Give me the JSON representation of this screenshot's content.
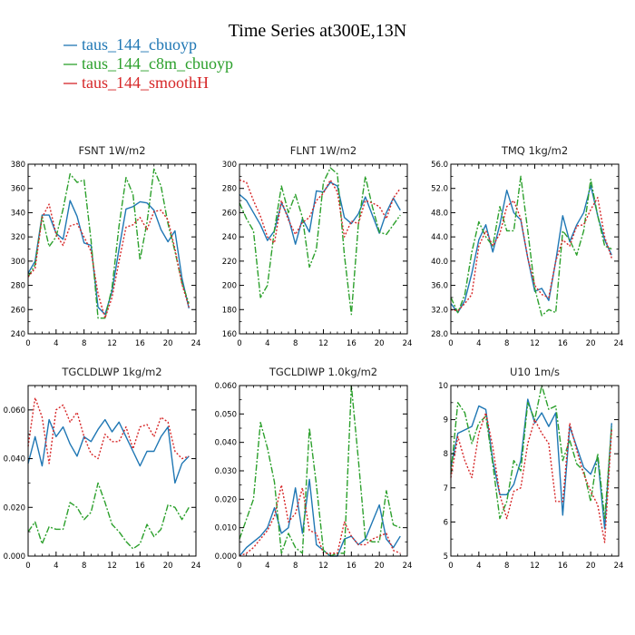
{
  "title": "Time Series at300E,13N",
  "legend": [
    {
      "label": "taus_144_cbuoyp",
      "color": "#1f77b4",
      "dash": "solid"
    },
    {
      "label": "taus_144_c8m_cbuoyp",
      "color": "#2ca02c",
      "dash": "dashdot"
    },
    {
      "label": "taus_144_smoothH",
      "color": "#d62728",
      "dash": "dotted"
    }
  ],
  "chart_data": [
    {
      "type": "line",
      "title": "FSNT   1W/m2",
      "xlim": [
        0,
        24
      ],
      "ylim": [
        240,
        380
      ],
      "xticks": [
        0,
        4,
        8,
        12,
        16,
        20,
        24
      ],
      "yticks": [
        240,
        260,
        280,
        300,
        320,
        340,
        360,
        380
      ],
      "ytick_labels": [
        "240",
        "260",
        "280",
        "300",
        "320",
        "340",
        "360",
        "380"
      ],
      "x": [
        0,
        1,
        2,
        3,
        4,
        5,
        6,
        7,
        8,
        9,
        10,
        11,
        12,
        13,
        14,
        15,
        16,
        17,
        18,
        19,
        20,
        21,
        22,
        23
      ],
      "series": [
        {
          "name": "taus_144_cbuoyp",
          "values": [
            290,
            300,
            338,
            338,
            323,
            318,
            350,
            337,
            315,
            313,
            262,
            256,
            275,
            310,
            343,
            345,
            349,
            348,
            342,
            326,
            316,
            325,
            286,
            261
          ]
        },
        {
          "name": "taus_144_c8m_cbuoyp",
          "values": [
            287,
            297,
            337,
            312,
            320,
            343,
            372,
            365,
            367,
            317,
            253,
            253,
            278,
            329,
            369,
            355,
            301,
            332,
            376,
            362,
            331,
            308,
            282,
            265
          ]
        },
        {
          "name": "taus_144_smoothH",
          "values": [
            287,
            294,
            336,
            347,
            322,
            313,
            329,
            331,
            320,
            308,
            273,
            253,
            270,
            300,
            328,
            330,
            336,
            326,
            341,
            342,
            334,
            310,
            281,
            262
          ]
        }
      ]
    },
    {
      "type": "line",
      "title": "FLNT   1W/m2",
      "xlim": [
        0,
        24
      ],
      "ylim": [
        160,
        300
      ],
      "xticks": [
        0,
        4,
        8,
        12,
        16,
        20,
        24
      ],
      "yticks": [
        160,
        180,
        200,
        220,
        240,
        260,
        280,
        300
      ],
      "ytick_labels": [
        "160",
        "180",
        "200",
        "220",
        "240",
        "260",
        "280",
        "300"
      ],
      "x": [
        0,
        1,
        2,
        3,
        4,
        5,
        6,
        7,
        8,
        9,
        10,
        11,
        12,
        13,
        14,
        15,
        16,
        17,
        18,
        19,
        20,
        21,
        22,
        23
      ],
      "series": [
        {
          "name": "taus_144_cbuoyp",
          "values": [
            275,
            270,
            260,
            250,
            237,
            245,
            268,
            256,
            234,
            255,
            244,
            278,
            277,
            285,
            282,
            256,
            251,
            259,
            273,
            258,
            243,
            260,
            272,
            262
          ]
        },
        {
          "name": "taus_144_c8m_cbuoyp",
          "values": [
            268,
            255,
            245,
            190,
            200,
            246,
            282,
            260,
            275,
            256,
            215,
            230,
            285,
            297,
            292,
            225,
            176,
            250,
            290,
            265,
            244,
            242,
            250,
            258
          ]
        },
        {
          "name": "taus_144_smoothH",
          "values": [
            287,
            285,
            270,
            257,
            240,
            235,
            270,
            254,
            242,
            252,
            256,
            270,
            276,
            287,
            277,
            240,
            253,
            251,
            270,
            268,
            265,
            255,
            272,
            280
          ]
        }
      ]
    },
    {
      "type": "line",
      "title": "TMQ   1kg/m2",
      "xlim": [
        0,
        24
      ],
      "ylim": [
        28,
        56
      ],
      "xticks": [
        0,
        4,
        8,
        12,
        16,
        20,
        24
      ],
      "yticks": [
        28,
        32,
        36,
        40,
        44,
        48,
        52,
        56
      ],
      "ytick_labels": [
        "28.0",
        "32.0",
        "36.0",
        "40.0",
        "44.0",
        "48.0",
        "52.0",
        "56.0"
      ],
      "x": [
        0,
        1,
        2,
        3,
        4,
        5,
        6,
        7,
        8,
        9,
        10,
        11,
        12,
        13,
        14,
        15,
        16,
        17,
        18,
        19,
        20,
        21,
        22,
        23
      ],
      "series": [
        {
          "name": "taus_144_cbuoyp",
          "values": [
            33,
            31.5,
            33.5,
            38,
            43.5,
            46,
            41.5,
            46,
            51.7,
            48,
            46.8,
            40.5,
            35,
            35.5,
            33.5,
            40,
            47.5,
            43.2,
            46,
            48,
            52.5,
            47.5,
            43.5,
            41
          ]
        },
        {
          "name": "taus_144_c8m_cbuoyp",
          "values": [
            34,
            31.5,
            34.5,
            41.5,
            46.5,
            44,
            42.5,
            49,
            45,
            45,
            54,
            45,
            35.5,
            31,
            32,
            31.5,
            45,
            43.5,
            41,
            45,
            53.5,
            47.5,
            42.5,
            42
          ]
        },
        {
          "name": "taus_144_smoothH",
          "values": [
            32,
            31.8,
            33,
            34.5,
            42.5,
            45,
            42.5,
            44.5,
            49,
            50,
            47,
            40.5,
            36,
            34.5,
            34,
            40,
            43.5,
            42.5,
            45.8,
            46,
            48.5,
            50.5,
            44,
            40.5
          ]
        }
      ]
    },
    {
      "type": "line",
      "title": "TGCLDLWP   1kg/m2",
      "xlim": [
        0,
        24
      ],
      "ylim": [
        0,
        0.07
      ],
      "xticks": [
        0,
        4,
        8,
        12,
        16,
        20,
        24
      ],
      "yticks": [
        0,
        0.02,
        0.04,
        0.06
      ],
      "ytick_labels": [
        "0.000",
        "0.020",
        "0.040",
        "0.060"
      ],
      "x": [
        0,
        1,
        2,
        3,
        4,
        5,
        6,
        7,
        8,
        9,
        10,
        11,
        12,
        13,
        14,
        15,
        16,
        17,
        18,
        19,
        20,
        21,
        22,
        23
      ],
      "series": [
        {
          "name": "taus_144_cbuoyp",
          "values": [
            0.038,
            0.049,
            0.037,
            0.056,
            0.049,
            0.053,
            0.046,
            0.041,
            0.049,
            0.047,
            0.052,
            0.056,
            0.051,
            0.055,
            0.049,
            0.043,
            0.037,
            0.043,
            0.043,
            0.049,
            0.053,
            0.03,
            0.038,
            0.041
          ]
        },
        {
          "name": "taus_144_c8m_cbuoyp",
          "values": [
            0.01,
            0.014,
            0.005,
            0.012,
            0.011,
            0.011,
            0.022,
            0.02,
            0.015,
            0.018,
            0.03,
            0.022,
            0.013,
            0.01,
            0.006,
            0.003,
            0.005,
            0.013,
            0.008,
            0.011,
            0.021,
            0.02,
            0.015,
            0.02
          ]
        },
        {
          "name": "taus_144_smoothH",
          "values": [
            0.045,
            0.065,
            0.057,
            0.038,
            0.06,
            0.062,
            0.055,
            0.059,
            0.049,
            0.042,
            0.04,
            0.05,
            0.047,
            0.047,
            0.053,
            0.044,
            0.053,
            0.054,
            0.049,
            0.057,
            0.055,
            0.043,
            0.04,
            0.041
          ]
        }
      ]
    },
    {
      "type": "line",
      "title": "TGCLDIWP   1.0kg/m2",
      "xlim": [
        0,
        24
      ],
      "ylim": [
        0,
        0.06
      ],
      "xticks": [
        0,
        4,
        8,
        12,
        16,
        20,
        24
      ],
      "yticks": [
        0,
        0.01,
        0.02,
        0.03,
        0.04,
        0.05,
        0.06
      ],
      "ytick_labels": [
        "0.000",
        "0.010",
        "0.020",
        "0.030",
        "0.040",
        "0.050",
        "0.060"
      ],
      "x": [
        0,
        1,
        2,
        3,
        4,
        5,
        6,
        7,
        8,
        9,
        10,
        11,
        12,
        13,
        14,
        15,
        16,
        17,
        18,
        19,
        20,
        21,
        22,
        23
      ],
      "series": [
        {
          "name": "taus_144_cbuoyp",
          "values": [
            0.0,
            0.003,
            0.005,
            0.007,
            0.01,
            0.017,
            0.008,
            0.01,
            0.024,
            0.008,
            0.027,
            0.004,
            0.002,
            0.0,
            0.0,
            0.006,
            0.007,
            0.004,
            0.006,
            0.012,
            0.018,
            0.006,
            0.003,
            0.007
          ]
        },
        {
          "name": "taus_144_c8m_cbuoyp",
          "values": [
            0.006,
            0.013,
            0.02,
            0.047,
            0.038,
            0.026,
            0.001,
            0.008,
            0.003,
            0.001,
            0.045,
            0.025,
            0.002,
            0.0,
            0.001,
            0.001,
            0.06,
            0.034,
            0.006,
            0.005,
            0.005,
            0.023,
            0.011,
            0.01
          ]
        },
        {
          "name": "taus_144_smoothH",
          "values": [
            0.0,
            0.001,
            0.003,
            0.006,
            0.009,
            0.014,
            0.025,
            0.012,
            0.015,
            0.024,
            0.009,
            0.008,
            0.001,
            0.001,
            0.001,
            0.012,
            0.007,
            0.004,
            0.004,
            0.006,
            0.007,
            0.008,
            0.002,
            0.001
          ]
        }
      ]
    },
    {
      "type": "line",
      "title": "U10   1m/s",
      "xlim": [
        0,
        24
      ],
      "ylim": [
        5,
        10
      ],
      "xticks": [
        0,
        4,
        8,
        12,
        16,
        20,
        24
      ],
      "yticks": [
        5,
        6,
        7,
        8,
        9,
        10
      ],
      "ytick_labels": [
        "5",
        "6",
        "7",
        "8",
        "9",
        "10"
      ],
      "x": [
        0,
        1,
        2,
        3,
        4,
        5,
        6,
        7,
        8,
        9,
        10,
        11,
        12,
        13,
        14,
        15,
        16,
        17,
        18,
        19,
        20,
        21,
        22,
        23
      ],
      "series": [
        {
          "name": "taus_144_cbuoyp",
          "values": [
            7.6,
            8.6,
            8.7,
            8.8,
            9.4,
            9.3,
            7.8,
            6.8,
            6.8,
            7.1,
            7.8,
            9.6,
            8.9,
            9.2,
            8.8,
            9.2,
            6.2,
            8.8,
            8.2,
            7.6,
            7.4,
            7.9,
            5.8,
            8.9
          ]
        },
        {
          "name": "taus_144_c8m_cbuoyp",
          "values": [
            7.4,
            9.5,
            9.2,
            8.3,
            8.9,
            9.1,
            7.7,
            6.1,
            6.6,
            7.8,
            7.5,
            9.5,
            9.0,
            10.0,
            9.3,
            9.4,
            7.8,
            8.4,
            7.7,
            7.5,
            6.6,
            8.0,
            6.1,
            8.8
          ]
        },
        {
          "name": "taus_144_smoothH",
          "values": [
            7.3,
            8.5,
            7.8,
            7.3,
            8.6,
            9.2,
            8.2,
            6.8,
            6.1,
            6.9,
            7.0,
            8.3,
            9.0,
            8.6,
            8.3,
            6.6,
            6.6,
            8.9,
            8.1,
            7.4,
            6.9,
            6.5,
            5.4,
            8.7
          ]
        }
      ]
    }
  ]
}
